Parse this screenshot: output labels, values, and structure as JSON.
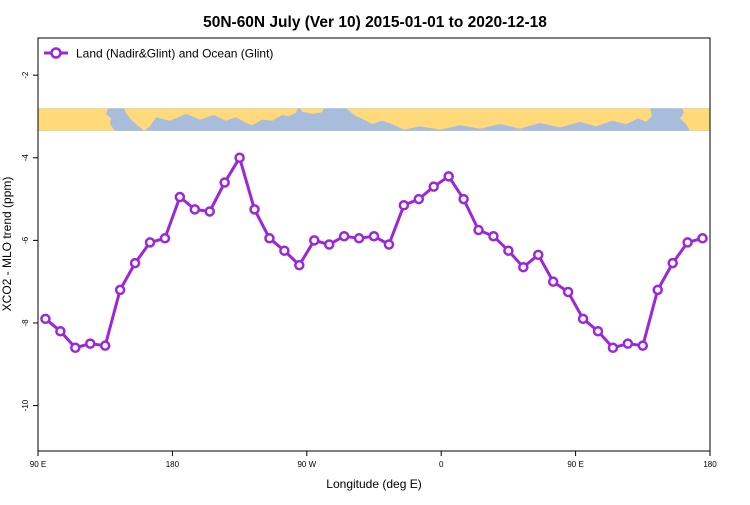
{
  "chart_data": {
    "type": "line",
    "title": "50N-60N July (Ver 10)   2015-01-01 to 2020-12-18",
    "xlabel": "Longitude (deg E)",
    "ylabel": "XCO2 - MLO trend (ppm)",
    "x_range_deg_east": [
      90,
      540
    ],
    "ylim": [
      -11.1,
      -1.1
    ],
    "yticks": [
      -2,
      -4,
      -6,
      -8,
      -10
    ],
    "xticks": [
      {
        "value": 90,
        "label": "90 E"
      },
      {
        "value": 180,
        "label": "180"
      },
      {
        "value": 270,
        "label": "90 W"
      },
      {
        "value": 360,
        "label": "0"
      },
      {
        "value": 450,
        "label": "90 E"
      },
      {
        "value": 540,
        "label": "180"
      }
    ],
    "grid": false,
    "legend_position": "top-left",
    "map_band": {
      "y_top": -2.8,
      "y_bottom": -3.35,
      "land_color": "#ffd97a",
      "ocean_color": "#a8bcdc"
    },
    "series": [
      {
        "name": "Land (Nadir&Glint) and Ocean (Glint)",
        "color": "#9b27d9",
        "x": [
          95,
          105,
          115,
          125,
          135,
          145,
          155,
          165,
          175,
          185,
          195,
          205,
          215,
          225,
          235,
          245,
          255,
          265,
          275,
          285,
          295,
          305,
          315,
          325,
          335,
          345,
          355,
          365,
          375,
          385,
          395,
          405,
          415,
          425,
          435,
          445,
          455,
          465,
          475,
          485,
          495,
          505,
          515,
          525,
          535
        ],
        "y": [
          -7.9,
          -8.2,
          -8.6,
          -8.5,
          -8.55,
          -7.2,
          -6.55,
          -6.05,
          -5.95,
          -4.95,
          -5.25,
          -5.3,
          -4.6,
          -4.0,
          -5.25,
          -5.95,
          -6.25,
          -6.6,
          -6.0,
          -6.1,
          -5.9,
          -5.95,
          -5.9,
          -6.1,
          -5.15,
          -5.0,
          -4.7,
          -4.45,
          -5.0,
          -5.75,
          -5.9,
          -6.25,
          -6.65,
          -6.35,
          -7.0,
          -7.25,
          -7.9,
          -8.2,
          -8.6,
          -8.5,
          -8.55,
          -7.2,
          -6.55,
          -6.05,
          -5.95
        ]
      }
    ]
  }
}
